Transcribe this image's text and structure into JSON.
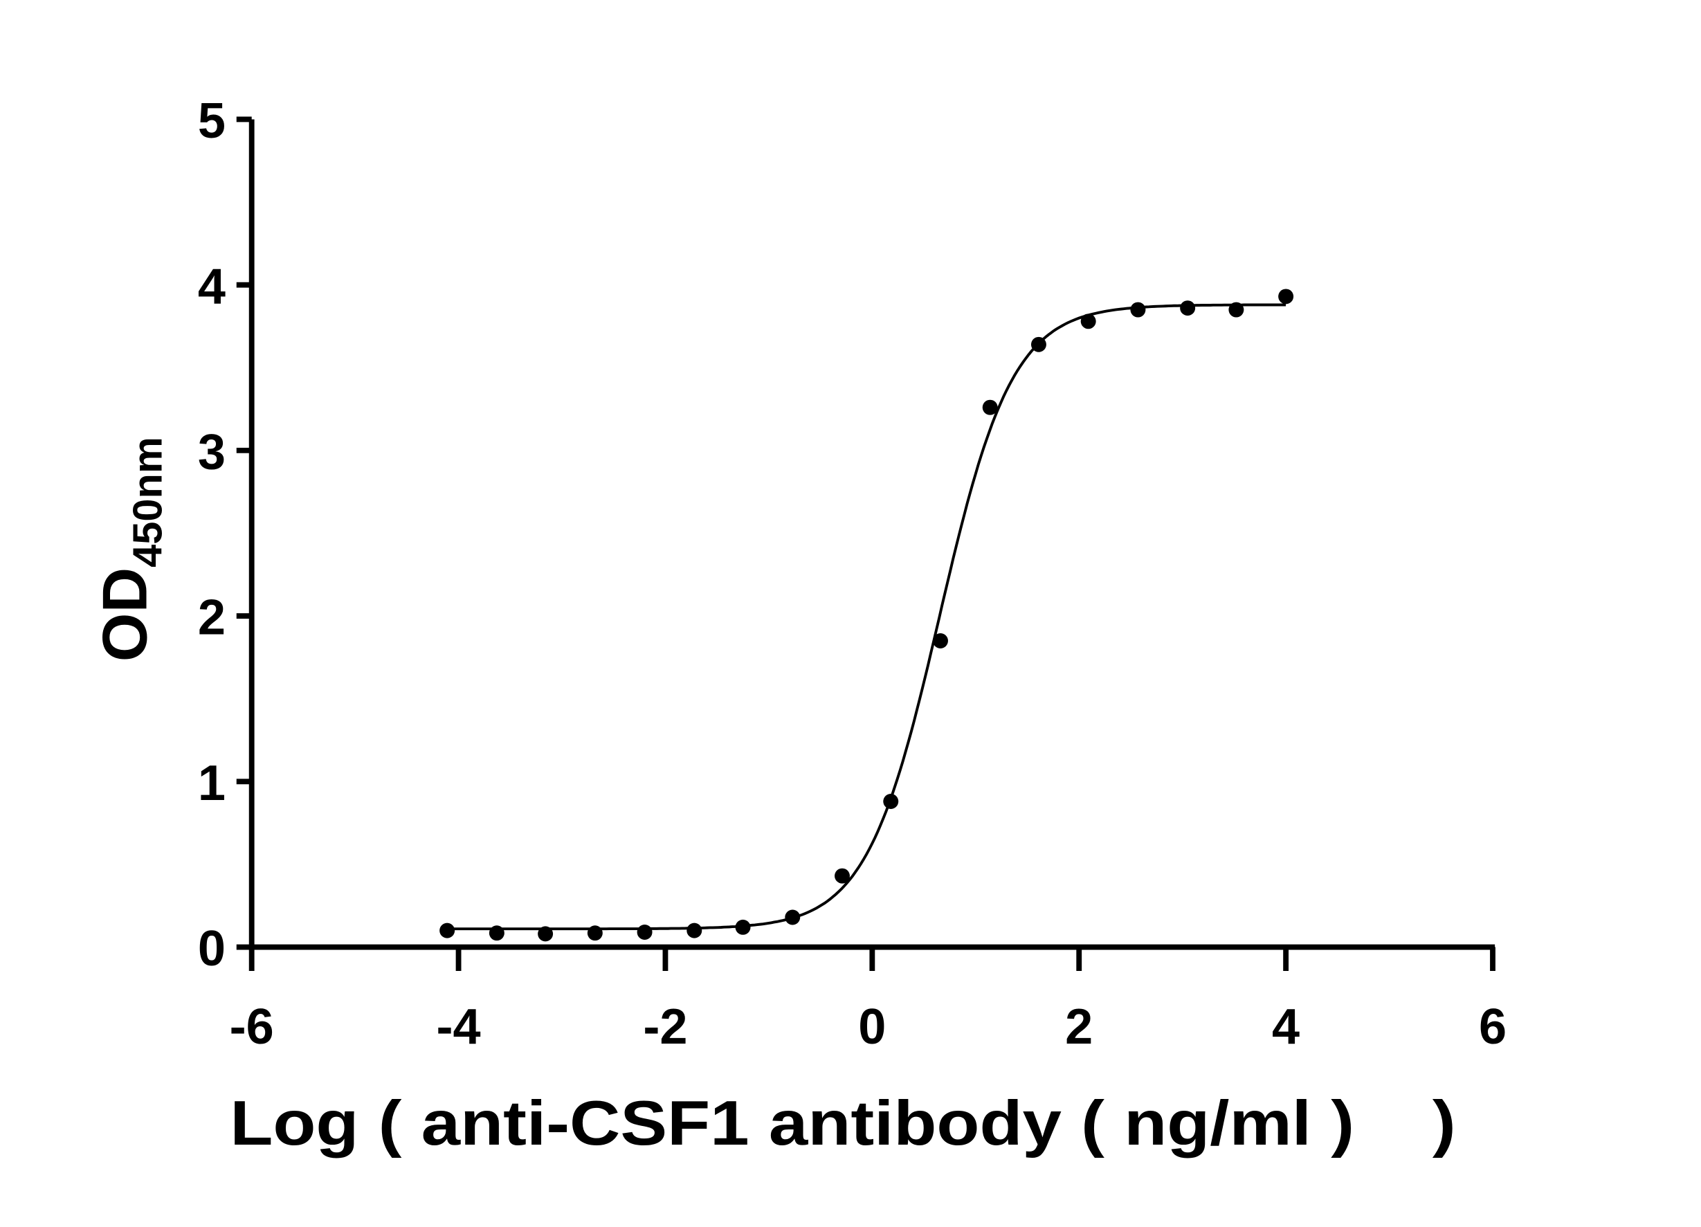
{
  "chart_data": {
    "type": "scatter",
    "title": "",
    "xlabel": "Log ( anti-CSF1 antibody ( ng/ml )    )",
    "ylabel": "OD",
    "ylabel_subscript": "450nm",
    "xlim": [
      -6,
      6
    ],
    "ylim": [
      0,
      5
    ],
    "x_ticks": [
      "-6",
      "-4",
      "-2",
      "0",
      "2",
      "4",
      "6"
    ],
    "y_ticks": [
      "0",
      "1",
      "2",
      "3",
      "4",
      "5"
    ],
    "grid": false,
    "fit": "sigmoidal dose-response curve",
    "series": [
      {
        "x": [
          -4.11,
          -3.63,
          -3.16,
          -2.68,
          -2.2,
          -1.72,
          -1.25,
          -0.77,
          -0.29,
          0.18,
          0.66,
          1.14,
          1.61,
          2.09,
          2.57,
          3.05,
          3.52,
          4.0
        ],
        "y": [
          0.1,
          0.085,
          0.08,
          0.085,
          0.09,
          0.1,
          0.12,
          0.18,
          0.43,
          0.88,
          1.85,
          3.26,
          3.64,
          3.78,
          3.85,
          3.86,
          3.85,
          3.93
        ]
      }
    ],
    "colors": {
      "points": "#000000",
      "curve": "#000000",
      "axes": "#000000"
    }
  }
}
